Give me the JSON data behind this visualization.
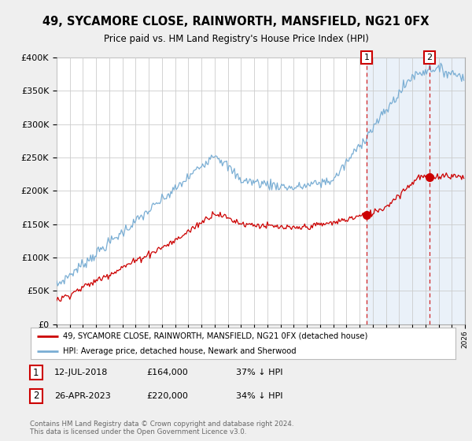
{
  "title": "49, SYCAMORE CLOSE, RAINWORTH, MANSFIELD, NG21 0FX",
  "subtitle": "Price paid vs. HM Land Registry's House Price Index (HPI)",
  "legend_line1": "49, SYCAMORE CLOSE, RAINWORTH, MANSFIELD, NG21 0FX (detached house)",
  "legend_line2": "HPI: Average price, detached house, Newark and Sherwood",
  "annotation1_label": "1",
  "annotation1_date": "12-JUL-2018",
  "annotation1_price": "£164,000",
  "annotation1_pct": "37% ↓ HPI",
  "annotation2_label": "2",
  "annotation2_date": "26-APR-2023",
  "annotation2_price": "£220,000",
  "annotation2_pct": "34% ↓ HPI",
  "footer": "Contains HM Land Registry data © Crown copyright and database right 2024.\nThis data is licensed under the Open Government Licence v3.0.",
  "hpi_color": "#7aaed4",
  "price_color": "#cc0000",
  "sale1_x": 2018.54,
  "sale1_y": 164000,
  "sale2_x": 2023.32,
  "sale2_y": 220000,
  "background_color": "#efefef",
  "plot_bg_color": "#ffffff",
  "grid_color": "#cccccc",
  "shaded_color": "#dde8f5",
  "xlim_start": 1995,
  "xlim_end": 2026,
  "ylim": [
    0,
    400000
  ],
  "yticks": [
    0,
    50000,
    100000,
    150000,
    200000,
    250000,
    300000,
    350000,
    400000
  ]
}
